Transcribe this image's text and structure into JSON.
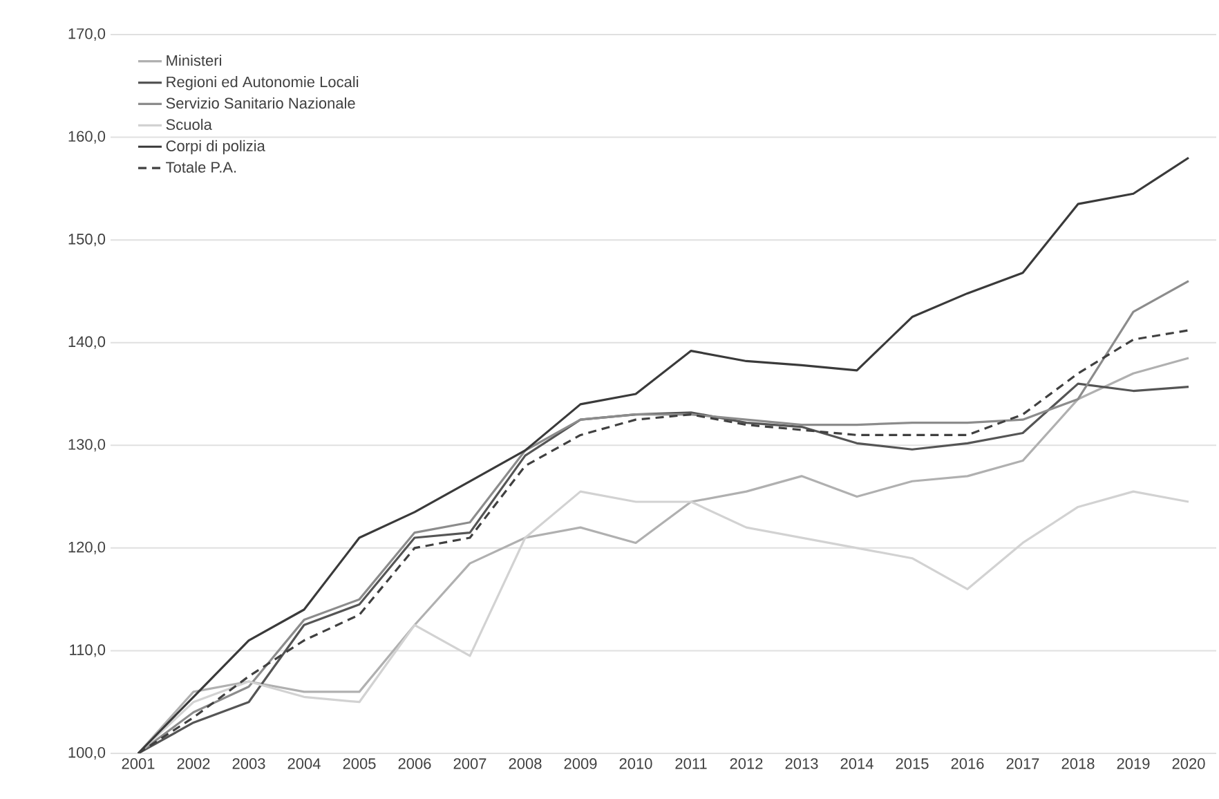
{
  "chart_data": {
    "type": "line",
    "categories": [
      "2001",
      "2002",
      "2003",
      "2004",
      "2005",
      "2006",
      "2007",
      "2008",
      "2009",
      "2010",
      "2011",
      "2012",
      "2013",
      "2014",
      "2015",
      "2016",
      "2017",
      "2018",
      "2019",
      "2020"
    ],
    "ylim": [
      100,
      170
    ],
    "yticks": [
      {
        "value": 100,
        "label": "100,0"
      },
      {
        "value": 110,
        "label": "110,0"
      },
      {
        "value": 120,
        "label": "120,0"
      },
      {
        "value": 130,
        "label": "130,0"
      },
      {
        "value": 140,
        "label": "140,0"
      },
      {
        "value": 150,
        "label": "150,0"
      },
      {
        "value": 160,
        "label": "160,0"
      },
      {
        "value": 170,
        "label": "170,0"
      }
    ],
    "grid": "y",
    "legend": "top left",
    "series": [
      {
        "name": "Ministeri",
        "color": "#b0b0b0",
        "values": [
          100,
          106,
          107,
          106,
          106,
          112.5,
          118.5,
          121,
          122,
          120.5,
          124.5,
          125.5,
          127,
          125,
          126.5,
          127,
          128.5,
          134.5,
          137,
          138.5
        ]
      },
      {
        "name": "Regioni ed Autonomie Locali",
        "color": "#555555",
        "values": [
          100,
          103,
          105,
          112.5,
          114.5,
          121,
          121.5,
          129,
          132.5,
          133,
          133.2,
          132.2,
          131.8,
          130.2,
          129.6,
          130.2,
          131.2,
          136,
          135.3,
          135.7
        ]
      },
      {
        "name": "Servizio Sanitario Nazionale",
        "color": "#8c8c8c",
        "values": [
          100,
          104,
          106.5,
          113,
          115,
          121.5,
          122.5,
          129.5,
          132.5,
          133,
          133,
          132.5,
          132,
          132,
          132.2,
          132.2,
          132.5,
          134.5,
          143,
          146
        ]
      },
      {
        "name": "Scuola",
        "color": "#d2d2d2",
        "values": [
          100,
          105,
          107,
          105.5,
          105,
          112.5,
          109.5,
          121,
          125.5,
          124.5,
          124.5,
          122,
          121,
          120,
          119,
          116,
          120.5,
          124,
          125.5,
          124.5
        ]
      },
      {
        "name": "Corpi di polizia",
        "color": "#3a3a3a",
        "values": [
          100,
          105.5,
          111,
          114,
          121,
          123.5,
          126.5,
          129.5,
          134,
          135,
          139.2,
          138.2,
          137.8,
          137.3,
          142.5,
          144.8,
          146.8,
          153.5,
          154.5,
          158
        ]
      },
      {
        "name": "Totale P.A.",
        "color": "#404040",
        "line_style": "dashed",
        "values": [
          100,
          103.5,
          107.5,
          111,
          113.5,
          120,
          121,
          128,
          131,
          132.5,
          133,
          132,
          131.5,
          131,
          131,
          131,
          133,
          137,
          140.3,
          141.2
        ]
      }
    ]
  }
}
